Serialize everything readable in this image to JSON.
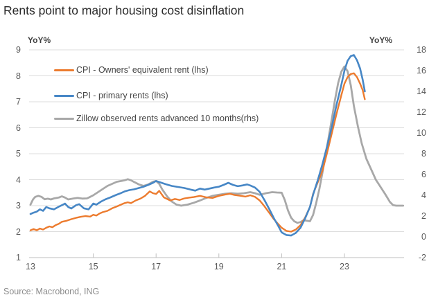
{
  "title": "Rents point to major housing cost disinflation",
  "source": "Source: Macrobond, ING",
  "axes": {
    "left_label": "YoY%",
    "right_label": "YoY%",
    "left_ticks": [
      9,
      8,
      7,
      6,
      5,
      4,
      3,
      2,
      1
    ],
    "right_ticks": [
      18,
      16,
      14,
      12,
      10,
      8,
      6,
      4,
      2,
      0,
      -2
    ],
    "x_ticks": [
      13,
      15,
      17,
      19,
      21,
      23
    ],
    "x_tick_marks": [
      15,
      17,
      19,
      21,
      23
    ],
    "left_range": [
      1,
      9
    ],
    "right_range": [
      -2,
      18
    ],
    "x_range": [
      13,
      24.9
    ],
    "grid": "horizontal"
  },
  "colors": {
    "orange": "#EC7B2E",
    "blue": "#4787C6",
    "gray": "#A8A8A8",
    "gridline": "#dcdcdc",
    "axis_line": "#bfbfbf",
    "tick_text": "#595959"
  },
  "legend": {
    "items": [
      {
        "label": "CPI - Owners' equivalent rent (lhs)",
        "color": "#EC7B2E"
      },
      {
        "label": "CPI - primary rents (lhs)",
        "color": "#4787C6"
      },
      {
        "label": "Zillow observed rents advanced 10 months(rhs)",
        "color": "#A8A8A8"
      }
    ]
  },
  "chart_data": {
    "type": "line",
    "title": "Rents point to major housing cost disinflation",
    "xlabel": "",
    "ylabel_left": "YoY%",
    "ylabel_right": "YoY%",
    "x_ticks": [
      13,
      15,
      17,
      19,
      21,
      23
    ],
    "ylim_left": [
      1,
      9
    ],
    "ylim_right": [
      -2,
      18
    ],
    "legend_position": "top-left-inside",
    "series": [
      {
        "name": "Zillow observed rents advanced 10 months(rhs)",
        "axis": "rhs",
        "color": "#A8A8A8",
        "width": 2.8,
        "points": [
          [
            13.0,
            3.1
          ],
          [
            13.08,
            3.6
          ],
          [
            13.15,
            3.85
          ],
          [
            13.25,
            3.95
          ],
          [
            13.35,
            3.85
          ],
          [
            13.45,
            3.62
          ],
          [
            13.55,
            3.67
          ],
          [
            13.65,
            3.6
          ],
          [
            13.75,
            3.7
          ],
          [
            13.9,
            3.78
          ],
          [
            14.0,
            3.9
          ],
          [
            14.1,
            3.78
          ],
          [
            14.2,
            3.6
          ],
          [
            14.35,
            3.68
          ],
          [
            14.5,
            3.75
          ],
          [
            14.65,
            3.68
          ],
          [
            14.8,
            3.7
          ],
          [
            14.9,
            3.85
          ],
          [
            15.0,
            4.0
          ],
          [
            15.15,
            4.3
          ],
          [
            15.3,
            4.6
          ],
          [
            15.45,
            4.9
          ],
          [
            15.6,
            5.1
          ],
          [
            15.75,
            5.3
          ],
          [
            15.9,
            5.38
          ],
          [
            16.0,
            5.45
          ],
          [
            16.1,
            5.55
          ],
          [
            16.2,
            5.45
          ],
          [
            16.3,
            5.28
          ],
          [
            16.45,
            5.05
          ],
          [
            16.6,
            4.9
          ],
          [
            16.75,
            5.05
          ],
          [
            16.9,
            5.3
          ],
          [
            17.0,
            5.38
          ],
          [
            17.1,
            5.1
          ],
          [
            17.2,
            4.55
          ],
          [
            17.35,
            3.9
          ],
          [
            17.5,
            3.4
          ],
          [
            17.65,
            3.1
          ],
          [
            17.8,
            3.0
          ],
          [
            18.0,
            3.1
          ],
          [
            18.2,
            3.28
          ],
          [
            18.4,
            3.5
          ],
          [
            18.6,
            3.75
          ],
          [
            18.8,
            3.95
          ],
          [
            19.0,
            4.05
          ],
          [
            19.2,
            4.15
          ],
          [
            19.4,
            4.2
          ],
          [
            19.6,
            4.15
          ],
          [
            19.8,
            4.2
          ],
          [
            20.0,
            4.3
          ],
          [
            20.15,
            4.2
          ],
          [
            20.3,
            4.05
          ],
          [
            20.5,
            4.2
          ],
          [
            20.7,
            4.3
          ],
          [
            20.85,
            4.27
          ],
          [
            21.0,
            4.25
          ],
          [
            21.1,
            3.55
          ],
          [
            21.2,
            2.55
          ],
          [
            21.3,
            1.85
          ],
          [
            21.4,
            1.5
          ],
          [
            21.5,
            1.35
          ],
          [
            21.6,
            1.42
          ],
          [
            21.7,
            1.6
          ],
          [
            21.8,
            1.55
          ],
          [
            21.9,
            1.5
          ],
          [
            22.0,
            2.1
          ],
          [
            22.1,
            3.25
          ],
          [
            22.2,
            4.6
          ],
          [
            22.3,
            6.2
          ],
          [
            22.4,
            7.9
          ],
          [
            22.5,
            9.6
          ],
          [
            22.6,
            11.4
          ],
          [
            22.7,
            13.2
          ],
          [
            22.8,
            14.8
          ],
          [
            22.9,
            15.9
          ],
          [
            23.0,
            16.4
          ],
          [
            23.1,
            15.95
          ],
          [
            23.2,
            14.6
          ],
          [
            23.3,
            12.6
          ],
          [
            23.43,
            10.6
          ],
          [
            23.55,
            9.0
          ],
          [
            23.7,
            7.5
          ],
          [
            23.85,
            6.5
          ],
          [
            24.0,
            5.5
          ],
          [
            24.15,
            4.8
          ],
          [
            24.3,
            4.1
          ],
          [
            24.45,
            3.35
          ],
          [
            24.55,
            3.05
          ],
          [
            24.65,
            3.0
          ],
          [
            24.75,
            3.0
          ],
          [
            24.87,
            3.0
          ]
        ]
      },
      {
        "name": "CPI - Owners' equivalent rent (lhs)",
        "axis": "lhs",
        "color": "#EC7B2E",
        "width": 2.4,
        "points": [
          [
            13.0,
            2.05
          ],
          [
            13.1,
            2.1
          ],
          [
            13.2,
            2.05
          ],
          [
            13.3,
            2.12
          ],
          [
            13.4,
            2.08
          ],
          [
            13.5,
            2.15
          ],
          [
            13.6,
            2.2
          ],
          [
            13.7,
            2.17
          ],
          [
            13.8,
            2.25
          ],
          [
            13.9,
            2.3
          ],
          [
            14.0,
            2.38
          ],
          [
            14.15,
            2.42
          ],
          [
            14.3,
            2.48
          ],
          [
            14.45,
            2.53
          ],
          [
            14.6,
            2.57
          ],
          [
            14.75,
            2.6
          ],
          [
            14.9,
            2.58
          ],
          [
            15.0,
            2.65
          ],
          [
            15.1,
            2.62
          ],
          [
            15.2,
            2.7
          ],
          [
            15.3,
            2.75
          ],
          [
            15.45,
            2.8
          ],
          [
            15.6,
            2.9
          ],
          [
            15.75,
            2.97
          ],
          [
            15.9,
            3.05
          ],
          [
            16.0,
            3.1
          ],
          [
            16.1,
            3.13
          ],
          [
            16.2,
            3.1
          ],
          [
            16.35,
            3.2
          ],
          [
            16.5,
            3.27
          ],
          [
            16.65,
            3.38
          ],
          [
            16.8,
            3.55
          ],
          [
            16.9,
            3.48
          ],
          [
            17.0,
            3.45
          ],
          [
            17.1,
            3.57
          ],
          [
            17.25,
            3.32
          ],
          [
            17.45,
            3.2
          ],
          [
            17.6,
            3.26
          ],
          [
            17.75,
            3.22
          ],
          [
            17.9,
            3.28
          ],
          [
            18.05,
            3.31
          ],
          [
            18.2,
            3.33
          ],
          [
            18.4,
            3.38
          ],
          [
            18.6,
            3.32
          ],
          [
            18.8,
            3.3
          ],
          [
            19.0,
            3.38
          ],
          [
            19.2,
            3.43
          ],
          [
            19.35,
            3.46
          ],
          [
            19.5,
            3.41
          ],
          [
            19.7,
            3.38
          ],
          [
            19.85,
            3.35
          ],
          [
            20.0,
            3.4
          ],
          [
            20.15,
            3.34
          ],
          [
            20.3,
            3.2
          ],
          [
            20.45,
            2.98
          ],
          [
            20.6,
            2.73
          ],
          [
            20.75,
            2.48
          ],
          [
            20.9,
            2.28
          ],
          [
            21.0,
            2.15
          ],
          [
            21.15,
            2.03
          ],
          [
            21.3,
            2.0
          ],
          [
            21.45,
            2.08
          ],
          [
            21.6,
            2.25
          ],
          [
            21.75,
            2.55
          ],
          [
            21.9,
            2.95
          ],
          [
            22.0,
            3.45
          ],
          [
            22.15,
            3.9
          ],
          [
            22.3,
            4.35
          ],
          [
            22.45,
            5.05
          ],
          [
            22.6,
            5.8
          ],
          [
            22.75,
            6.55
          ],
          [
            22.9,
            7.25
          ],
          [
            23.0,
            7.7
          ],
          [
            23.1,
            7.95
          ],
          [
            23.2,
            8.07
          ],
          [
            23.3,
            8.1
          ],
          [
            23.4,
            7.95
          ],
          [
            23.5,
            7.7
          ],
          [
            23.58,
            7.45
          ],
          [
            23.65,
            7.1
          ]
        ]
      },
      {
        "name": "CPI - primary rents (lhs)",
        "axis": "lhs",
        "color": "#4787C6",
        "width": 2.6,
        "points": [
          [
            13.0,
            2.68
          ],
          [
            13.1,
            2.73
          ],
          [
            13.2,
            2.77
          ],
          [
            13.3,
            2.86
          ],
          [
            13.4,
            2.8
          ],
          [
            13.5,
            2.95
          ],
          [
            13.6,
            2.9
          ],
          [
            13.75,
            2.86
          ],
          [
            13.9,
            2.96
          ],
          [
            14.0,
            3.02
          ],
          [
            14.1,
            3.08
          ],
          [
            14.2,
            2.95
          ],
          [
            14.3,
            2.89
          ],
          [
            14.45,
            3.02
          ],
          [
            14.55,
            3.06
          ],
          [
            14.7,
            2.9
          ],
          [
            14.85,
            2.86
          ],
          [
            15.0,
            3.08
          ],
          [
            15.1,
            3.04
          ],
          [
            15.25,
            3.16
          ],
          [
            15.4,
            3.25
          ],
          [
            15.55,
            3.32
          ],
          [
            15.7,
            3.4
          ],
          [
            15.85,
            3.47
          ],
          [
            16.0,
            3.55
          ],
          [
            16.15,
            3.6
          ],
          [
            16.3,
            3.63
          ],
          [
            16.45,
            3.68
          ],
          [
            16.6,
            3.73
          ],
          [
            16.75,
            3.8
          ],
          [
            16.9,
            3.88
          ],
          [
            17.0,
            3.95
          ],
          [
            17.15,
            3.89
          ],
          [
            17.3,
            3.83
          ],
          [
            17.5,
            3.76
          ],
          [
            17.7,
            3.72
          ],
          [
            17.9,
            3.68
          ],
          [
            18.1,
            3.62
          ],
          [
            18.25,
            3.58
          ],
          [
            18.4,
            3.66
          ],
          [
            18.55,
            3.62
          ],
          [
            18.7,
            3.66
          ],
          [
            18.85,
            3.7
          ],
          [
            19.0,
            3.73
          ],
          [
            19.15,
            3.8
          ],
          [
            19.3,
            3.88
          ],
          [
            19.45,
            3.8
          ],
          [
            19.6,
            3.75
          ],
          [
            19.75,
            3.78
          ],
          [
            19.9,
            3.82
          ],
          [
            20.0,
            3.78
          ],
          [
            20.15,
            3.7
          ],
          [
            20.3,
            3.53
          ],
          [
            20.45,
            3.22
          ],
          [
            20.6,
            2.88
          ],
          [
            20.75,
            2.52
          ],
          [
            20.9,
            2.2
          ],
          [
            21.0,
            1.97
          ],
          [
            21.15,
            1.87
          ],
          [
            21.3,
            1.85
          ],
          [
            21.45,
            1.95
          ],
          [
            21.6,
            2.15
          ],
          [
            21.75,
            2.52
          ],
          [
            21.9,
            2.95
          ],
          [
            22.0,
            3.42
          ],
          [
            22.15,
            3.98
          ],
          [
            22.3,
            4.6
          ],
          [
            22.45,
            5.3
          ],
          [
            22.6,
            6.05
          ],
          [
            22.75,
            6.9
          ],
          [
            22.9,
            7.65
          ],
          [
            23.0,
            8.2
          ],
          [
            23.1,
            8.58
          ],
          [
            23.2,
            8.76
          ],
          [
            23.3,
            8.8
          ],
          [
            23.4,
            8.6
          ],
          [
            23.5,
            8.28
          ],
          [
            23.58,
            7.85
          ],
          [
            23.65,
            7.4
          ]
        ]
      }
    ]
  }
}
